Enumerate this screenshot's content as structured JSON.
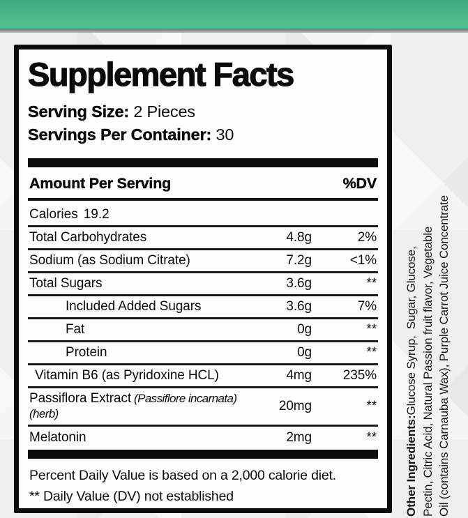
{
  "theme": {
    "band_green_top": "#3da77d",
    "band_green_bottom": "#4fbd8e",
    "divider_gray": "#6f6f71",
    "page_background": "#efeff0",
    "label_ink": "#0b0b0b"
  },
  "label": {
    "title": "Supplement Facts",
    "serving_size_label": "Serving Size:",
    "serving_size_value": "2 Pieces",
    "servings_per_container_label": "Servings Per Container:",
    "servings_per_container_value": "30",
    "header": {
      "amount_per_serving": "Amount Per Serving",
      "dv": "%DV"
    },
    "calories_row": {
      "label": "Calories",
      "value": "19.2"
    },
    "rows": [
      {
        "name": "Total Carbohydrates",
        "name_italic": "",
        "amount": "4.8g",
        "dv": "2%",
        "indent": "none"
      },
      {
        "name": "Sodium (as Sodium Citrate)",
        "name_italic": "",
        "amount": "7.2g",
        "dv": "<1%",
        "indent": "none"
      },
      {
        "name": "Total Sugars",
        "name_italic": "",
        "amount": "3.6g",
        "dv": "**",
        "indent": "none"
      },
      {
        "name": "Included Added Sugars",
        "name_italic": "",
        "amount": "3.6g",
        "dv": "7%",
        "indent": "large"
      },
      {
        "name": "Fat",
        "name_italic": "",
        "amount": "0g",
        "dv": "**",
        "indent": "large"
      },
      {
        "name": "Protein",
        "name_italic": "",
        "amount": "0g",
        "dv": "**",
        "indent": "large"
      },
      {
        "name": "Vitamin B6 (as Pyridoxine HCL)",
        "name_italic": "",
        "amount": "4mg",
        "dv": "235%",
        "indent": "small"
      },
      {
        "name": "Passiflora Extract",
        "name_italic": "(Passiflore incarnata)(herb)",
        "amount": "20mg",
        "dv": "**",
        "indent": "none"
      },
      {
        "name": "Melatonin",
        "name_italic": "",
        "amount": "2mg",
        "dv": "**",
        "indent": "none"
      }
    ],
    "footnotes": [
      "Percent Daily Value is based on a 2,000 calorie diet.",
      "** Daily Value (DV) not established"
    ]
  },
  "side_text": {
    "lines": [
      {
        "bold": "Other Ingredients:",
        "text": "Glucose Syrup,  Sugar, Glucose,"
      },
      {
        "bold": "",
        "text": "Pectin, Citric Acid, Natural Passion fruit flavor, Vegetable"
      },
      {
        "bold": "",
        "text": "Oil (contains Carnauba Wax), Purple Carrot Juice Concentrate"
      }
    ]
  }
}
